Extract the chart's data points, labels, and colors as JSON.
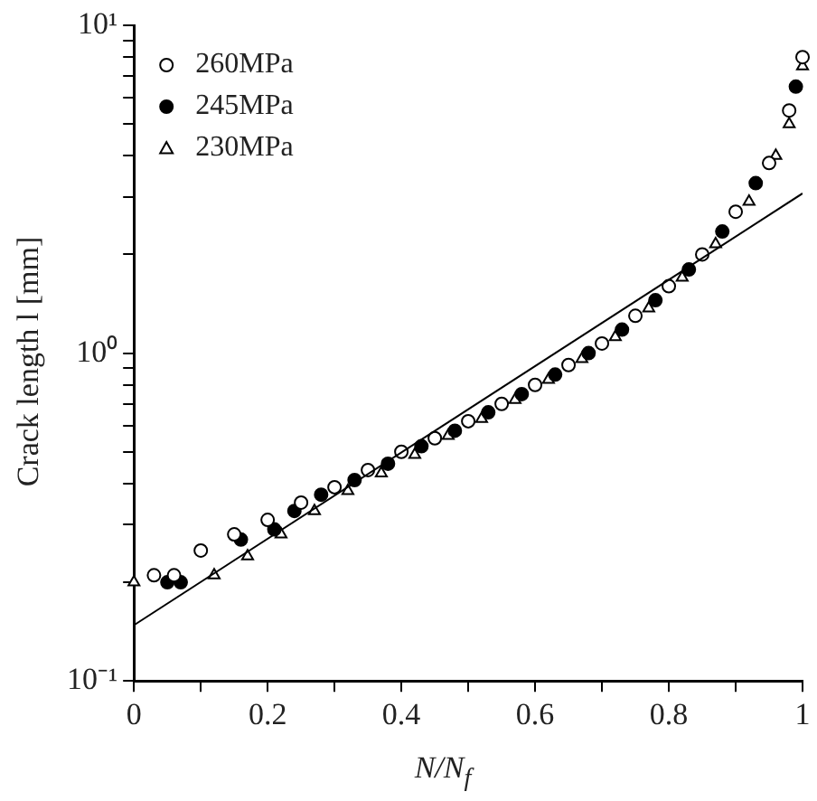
{
  "chart_data": {
    "type": "scatter",
    "xlabel": "N/N$_{f}$",
    "ylabel": "Crack length l [mm]",
    "xlim": [
      0,
      1
    ],
    "ylim": [
      0.1,
      10
    ],
    "log": "y",
    "grid": false,
    "legend": "top left",
    "xticks": [
      0,
      {
        "value": 0.1,
        "label": null
      },
      0.2,
      {
        "value": 0.3,
        "label": null
      },
      0.4,
      {
        "value": 0.5,
        "label": null
      },
      0.6,
      {
        "value": 0.7,
        "label": null
      },
      0.8,
      {
        "value": 0.9,
        "label": null
      },
      1
    ],
    "yticks": [
      {
        "value": 0.1,
        "label": "10⁻¹"
      },
      {
        "value": 0.2,
        "label": null
      },
      {
        "value": 0.3,
        "label": null
      },
      {
        "value": 0.4,
        "label": null
      },
      {
        "value": 0.5,
        "label": null
      },
      {
        "value": 0.6,
        "label": null
      },
      {
        "value": 0.7,
        "label": null
      },
      {
        "value": 0.8,
        "label": null
      },
      {
        "value": 0.9,
        "label": null
      },
      {
        "value": 1,
        "label": "10⁰"
      },
      {
        "value": 2,
        "label": null
      },
      {
        "value": 3,
        "label": null
      },
      {
        "value": 4,
        "label": null
      },
      {
        "value": 5,
        "label": null
      },
      {
        "value": 6,
        "label": null
      },
      {
        "value": 7,
        "label": null
      },
      {
        "value": 8,
        "label": null
      },
      {
        "value": 9,
        "label": null
      },
      {
        "value": 10,
        "label": "10¹"
      }
    ],
    "series": [
      {
        "name": "260MPa",
        "color": "#ffffff",
        "marker": "circle",
        "x": [
          0.03,
          0.06,
          0.1,
          0.15,
          0.2,
          0.25,
          0.3,
          0.35,
          0.4,
          0.45,
          0.5,
          0.55,
          0.6,
          0.65,
          0.7,
          0.75,
          0.8,
          0.85,
          0.9,
          0.95,
          0.98,
          1.0
        ],
        "values": [
          0.21,
          0.21,
          0.25,
          0.28,
          0.31,
          0.35,
          0.39,
          0.44,
          0.5,
          0.55,
          0.62,
          0.7,
          0.8,
          0.92,
          1.07,
          1.3,
          1.6,
          2.0,
          2.7,
          3.8,
          5.5,
          8.0
        ]
      },
      {
        "name": "245MPa",
        "color": "#000000",
        "marker": "circle",
        "x": [
          0.05,
          0.07,
          0.16,
          0.21,
          0.24,
          0.28,
          0.33,
          0.38,
          0.43,
          0.48,
          0.53,
          0.58,
          0.63,
          0.68,
          0.73,
          0.78,
          0.83,
          0.88,
          0.93,
          0.99
        ],
        "values": [
          0.2,
          0.2,
          0.27,
          0.29,
          0.33,
          0.37,
          0.41,
          0.46,
          0.52,
          0.58,
          0.66,
          0.75,
          0.86,
          1.0,
          1.18,
          1.45,
          1.8,
          2.35,
          3.3,
          6.5
        ]
      },
      {
        "name": "230MPa",
        "color": "#ffffff",
        "marker": "triangle",
        "x": [
          0.0,
          0.12,
          0.17,
          0.22,
          0.27,
          0.32,
          0.37,
          0.42,
          0.47,
          0.52,
          0.57,
          0.62,
          0.67,
          0.72,
          0.77,
          0.82,
          0.87,
          0.92,
          0.96,
          0.98,
          1.0
        ],
        "values": [
          0.2,
          0.21,
          0.24,
          0.28,
          0.33,
          0.38,
          0.43,
          0.49,
          0.56,
          0.63,
          0.72,
          0.83,
          0.96,
          1.12,
          1.37,
          1.7,
          2.15,
          2.9,
          4.0,
          5.0,
          7.5
        ]
      },
      {
        "type": "line",
        "color": "#000000",
        "marker": "none",
        "line_style": "solid",
        "x": [
          0,
          1
        ],
        "values": [
          0.148,
          3.07
        ]
      }
    ]
  }
}
